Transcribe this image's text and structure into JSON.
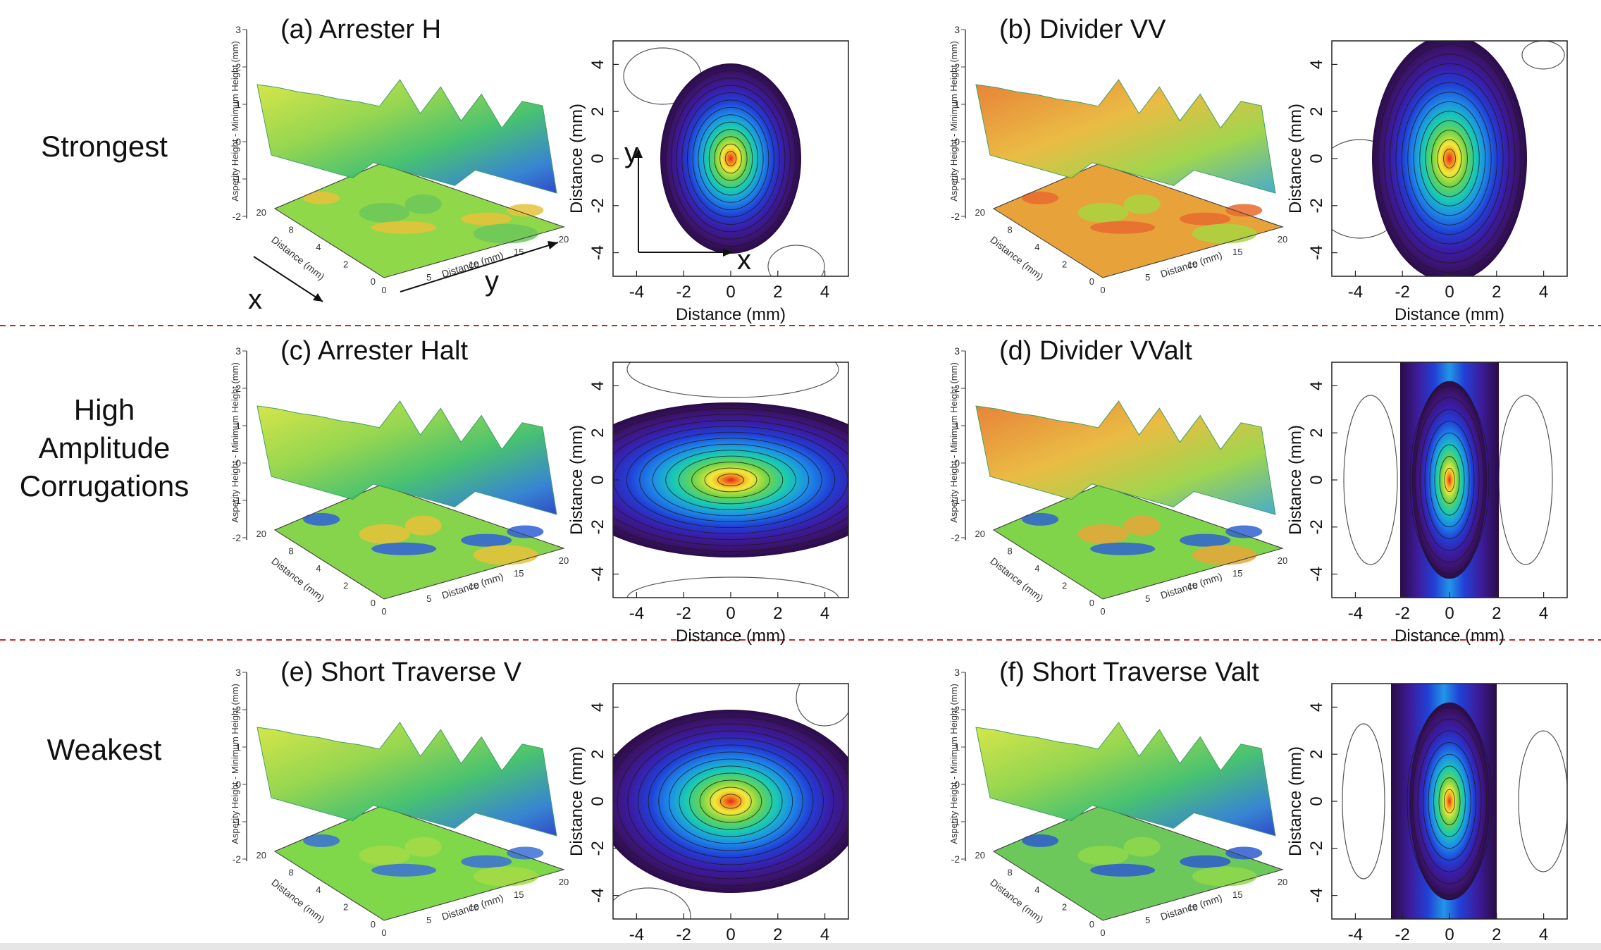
{
  "rows": [
    {
      "label": [
        "Strongest"
      ]
    },
    {
      "label": [
        "High",
        "Amplitude",
        "Corrugations"
      ]
    },
    {
      "label": [
        "Weakest"
      ]
    }
  ],
  "panels": [
    {
      "id": "a",
      "title": "(a) Arrester H",
      "map": "a",
      "blob": "round"
    },
    {
      "id": "b",
      "title": "(b) Divider VV",
      "map": "b",
      "blob": "tall"
    },
    {
      "id": "c",
      "title": "(c) Arrester Halt",
      "map": "c",
      "blob": "wide"
    },
    {
      "id": "d",
      "title": "(d) Divider VValt",
      "map": "d",
      "blob": "band"
    },
    {
      "id": "e",
      "title": "(e) Short Traverse V",
      "map": "e",
      "blob": "round2"
    },
    {
      "id": "f",
      "title": "(f) Short Traverse Valt",
      "map": "f",
      "blob": "band2"
    }
  ],
  "surface_axes": {
    "z_label": "Asperity Height - Minimum Height (mm)",
    "z_ticks": [
      "3",
      "2",
      "1",
      "0",
      "-1",
      "-2"
    ],
    "y_label": "Distance (mm)",
    "y_ticks": [
      "0",
      "5",
      "10",
      "15",
      "20"
    ],
    "x_label": "Distance (mm)",
    "x_ticks": [
      "20",
      "8",
      "4",
      "2",
      "0"
    ]
  },
  "contour_axes": {
    "xlabel": "Distance (mm)",
    "ylabel": "Distance (mm)",
    "xticks": [
      "-4",
      "-2",
      "0",
      "2",
      "4"
    ],
    "yticks": [
      "4",
      "2",
      "0",
      "-2",
      "-4"
    ]
  },
  "axis_letters": {
    "x": "x",
    "y": "y"
  },
  "colors": {
    "divider": "#c62828",
    "outline": "#555555"
  }
}
